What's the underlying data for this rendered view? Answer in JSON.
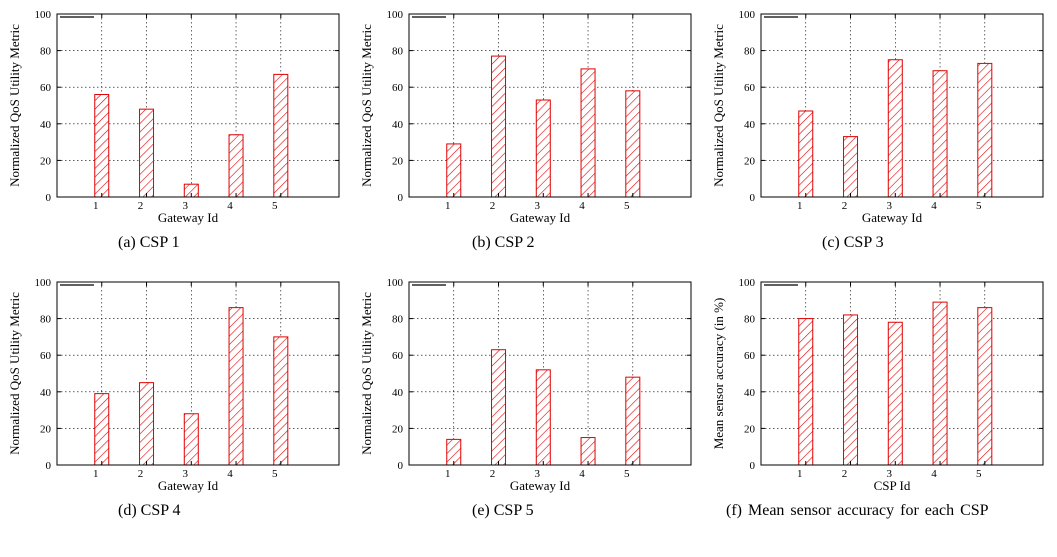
{
  "chart_data": [
    {
      "id": "a",
      "type": "bar",
      "caption": "(a) CSP 1",
      "categories": [
        "1",
        "2",
        "3",
        "4",
        "5"
      ],
      "values": [
        56,
        48,
        7,
        34,
        67
      ],
      "xlabel": "Gateway Id",
      "ylabel": "Normalized QoS Utility Metric",
      "ylim": [
        0,
        100
      ],
      "yticks": [
        "0",
        "20",
        "40",
        "60",
        "80",
        "100"
      ],
      "grid": true,
      "legend": "top-left",
      "color": "#e00000"
    },
    {
      "id": "b",
      "type": "bar",
      "caption": "(b) CSP 2",
      "categories": [
        "1",
        "2",
        "3",
        "4",
        "5"
      ],
      "values": [
        29,
        77,
        53,
        70,
        58
      ],
      "xlabel": "Gateway Id",
      "ylabel": "Normalized QoS Utility Metric",
      "ylim": [
        0,
        100
      ],
      "yticks": [
        "0",
        "20",
        "40",
        "60",
        "80",
        "100"
      ],
      "grid": true,
      "legend": "top-left",
      "color": "#e00000"
    },
    {
      "id": "c",
      "type": "bar",
      "caption": "(c) CSP 3",
      "categories": [
        "1",
        "2",
        "3",
        "4",
        "5"
      ],
      "values": [
        47,
        33,
        75,
        69,
        73
      ],
      "xlabel": "Gateway Id",
      "ylabel": "Normalized QoS Utility Metric",
      "ylim": [
        0,
        100
      ],
      "yticks": [
        "0",
        "20",
        "40",
        "60",
        "80",
        "100"
      ],
      "grid": true,
      "legend": "top-left",
      "color": "#e00000"
    },
    {
      "id": "d",
      "type": "bar",
      "caption": "(d) CSP 4",
      "categories": [
        "1",
        "2",
        "3",
        "4",
        "5"
      ],
      "values": [
        39,
        45,
        28,
        86,
        70
      ],
      "xlabel": "Gateway Id",
      "ylabel": "Normalized QoS Utility Metric",
      "ylim": [
        0,
        100
      ],
      "yticks": [
        "0",
        "20",
        "40",
        "60",
        "80",
        "100"
      ],
      "grid": true,
      "legend": "top-left",
      "color": "#e00000"
    },
    {
      "id": "e",
      "type": "bar",
      "caption": "(e) CSP 5",
      "categories": [
        "1",
        "2",
        "3",
        "4",
        "5"
      ],
      "values": [
        14,
        63,
        52,
        15,
        48
      ],
      "xlabel": "Gateway Id",
      "ylabel": "Normalized QoS Utility Metric",
      "ylim": [
        0,
        100
      ],
      "yticks": [
        "0",
        "20",
        "40",
        "60",
        "80",
        "100"
      ],
      "grid": true,
      "legend": "top-left",
      "color": "#e00000"
    },
    {
      "id": "f",
      "type": "bar",
      "caption": "(f) Mean sensor accuracy for each CSP",
      "categories": [
        "1",
        "2",
        "3",
        "4",
        "5"
      ],
      "values": [
        80,
        82,
        78,
        89,
        86
      ],
      "xlabel": "CSP Id",
      "ylabel": "Mean sensor accuracy (in %)",
      "ylim": [
        0,
        100
      ],
      "yticks": [
        "0",
        "20",
        "40",
        "60",
        "80",
        "100"
      ],
      "grid": true,
      "legend": "top-left",
      "color": "#e00000"
    }
  ]
}
